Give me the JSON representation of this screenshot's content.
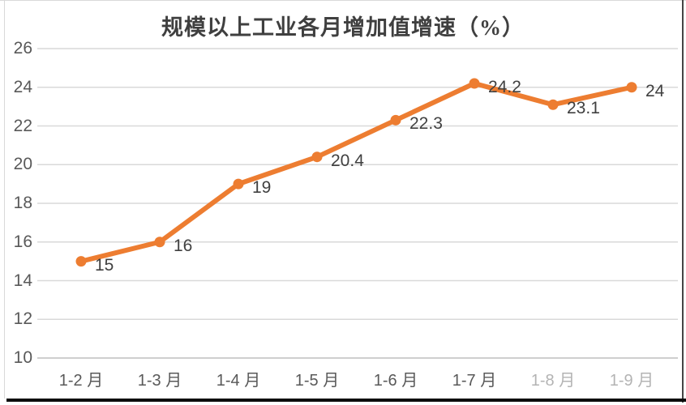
{
  "chart_data": {
    "type": "line",
    "title": "规模以上工业各月增加值增速（%）",
    "categories": [
      "1-2 月",
      "1-3 月",
      "1-4 月",
      "1-5 月",
      "1-6 月",
      "1-7 月",
      "1-8 月",
      "1-9 月"
    ],
    "values": [
      15,
      16,
      19,
      20.4,
      22.3,
      24.2,
      23.1,
      24
    ],
    "data_labels": [
      "15",
      "16",
      "19",
      "20.4",
      "22.3",
      "24.2",
      "23.1",
      "24"
    ],
    "xlabel": "",
    "ylabel": "",
    "ylim": [
      10,
      26
    ],
    "yticks": [
      26,
      24,
      22,
      20,
      18,
      16,
      14,
      12,
      10
    ],
    "grid": true,
    "legend": "none",
    "line_color": "#ED7D31",
    "marker": "circle",
    "gridline_color": "#d9d9d9",
    "axis_line_color": "#bfbfbf",
    "tick_label_color": "#595959",
    "data_label_color": "#404040",
    "faded_category_indices": [
      6,
      7
    ]
  }
}
